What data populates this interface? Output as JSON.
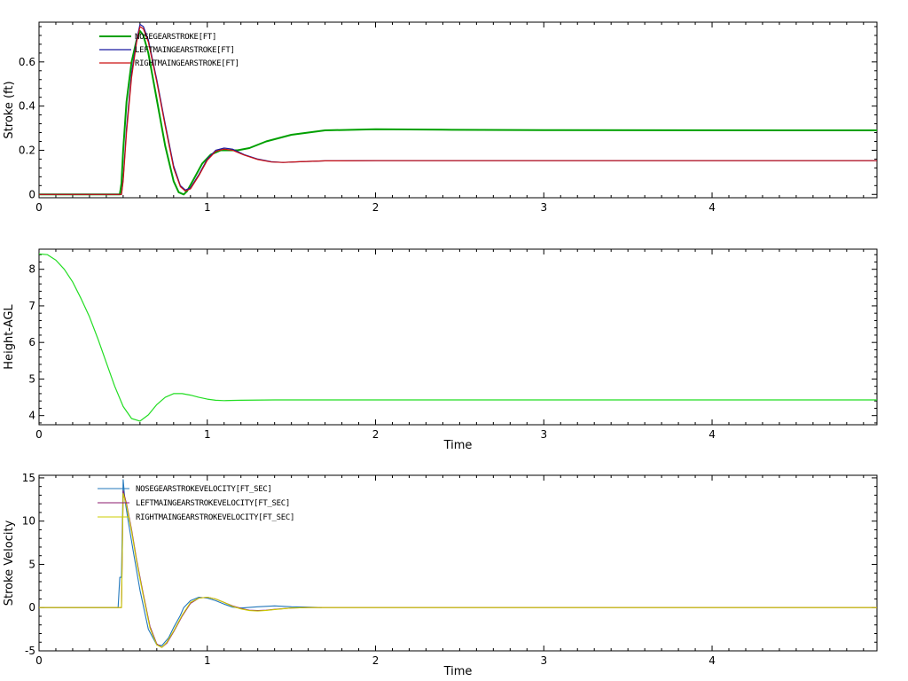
{
  "chart_data": [
    {
      "type": "line",
      "ylabel": "Stroke (ft)",
      "xlabel": "",
      "xlim": [
        0,
        4.98
      ],
      "ylim": [
        -0.015,
        0.78
      ],
      "xticks": [
        0,
        1,
        2,
        3,
        4
      ],
      "yticks": [
        0,
        0.2,
        0.4,
        0.6
      ],
      "ytick_labels": [
        "0",
        "0.2",
        "0.4",
        "0.6"
      ],
      "legend_position": "top-left",
      "series": [
        {
          "name": "NOSEGEARSTROKE[FT]",
          "color": "#00a000",
          "width": 2,
          "x": [
            0,
            0.48,
            0.49,
            0.5,
            0.52,
            0.55,
            0.58,
            0.6,
            0.62,
            0.65,
            0.7,
            0.75,
            0.8,
            0.83,
            0.86,
            0.88,
            0.92,
            0.97,
            1.02,
            1.08,
            1.12,
            1.18,
            1.25,
            1.35,
            1.5,
            1.7,
            2.0,
            2.4,
            3.0,
            4.98
          ],
          "y": [
            0,
            0,
            0.05,
            0.2,
            0.42,
            0.6,
            0.7,
            0.74,
            0.72,
            0.64,
            0.43,
            0.22,
            0.06,
            0.01,
            0.0,
            0.015,
            0.07,
            0.14,
            0.18,
            0.2,
            0.2,
            0.2,
            0.21,
            0.24,
            0.27,
            0.29,
            0.295,
            0.293,
            0.291,
            0.29
          ]
        },
        {
          "name": "LEFTMAINGEARSTROKE[FT]",
          "color": "#1a1aa0",
          "width": 1.2,
          "x": [
            0,
            0.49,
            0.5,
            0.52,
            0.55,
            0.58,
            0.6,
            0.62,
            0.65,
            0.7,
            0.75,
            0.8,
            0.84,
            0.87,
            0.9,
            0.95,
            1.0,
            1.05,
            1.1,
            1.15,
            1.22,
            1.3,
            1.38,
            1.45,
            1.55,
            1.7,
            2.0,
            3.0,
            4.98
          ],
          "y": [
            0,
            0,
            0.07,
            0.3,
            0.55,
            0.7,
            0.77,
            0.76,
            0.7,
            0.52,
            0.32,
            0.13,
            0.04,
            0.02,
            0.03,
            0.09,
            0.16,
            0.2,
            0.21,
            0.205,
            0.18,
            0.16,
            0.148,
            0.145,
            0.148,
            0.152,
            0.153,
            0.153,
            0.153
          ]
        },
        {
          "name": "RIGHTMAINGEARSTROKE[FT]",
          "color": "#cc1111",
          "width": 1.2,
          "x": [
            0,
            0.49,
            0.5,
            0.52,
            0.55,
            0.58,
            0.6,
            0.62,
            0.65,
            0.7,
            0.75,
            0.8,
            0.84,
            0.87,
            0.9,
            0.95,
            1.0,
            1.05,
            1.1,
            1.15,
            1.22,
            1.3,
            1.38,
            1.45,
            1.55,
            1.7,
            2.0,
            3.0,
            4.98
          ],
          "y": [
            0,
            0,
            0.06,
            0.28,
            0.53,
            0.69,
            0.76,
            0.75,
            0.69,
            0.51,
            0.31,
            0.12,
            0.035,
            0.015,
            0.025,
            0.085,
            0.155,
            0.195,
            0.205,
            0.2,
            0.178,
            0.158,
            0.147,
            0.145,
            0.148,
            0.152,
            0.153,
            0.153,
            0.153
          ]
        }
      ]
    },
    {
      "type": "line",
      "ylabel": "Height-AGL",
      "xlabel": "Time",
      "xlim": [
        0,
        4.98
      ],
      "ylim": [
        3.75,
        8.55
      ],
      "xticks": [
        0,
        1,
        2,
        3,
        4
      ],
      "yticks": [
        4,
        5,
        6,
        7,
        8
      ],
      "ytick_labels": [
        "4",
        "5",
        "6",
        "7",
        "8"
      ],
      "series": [
        {
          "name": "",
          "color": "#22dd22",
          "width": 1.2,
          "x": [
            0,
            0.05,
            0.1,
            0.15,
            0.2,
            0.25,
            0.3,
            0.35,
            0.4,
            0.45,
            0.5,
            0.55,
            0.6,
            0.65,
            0.7,
            0.75,
            0.8,
            0.85,
            0.9,
            0.95,
            1.0,
            1.05,
            1.1,
            1.2,
            1.4,
            2.0,
            3.0,
            4.98
          ],
          "y": [
            8.42,
            8.4,
            8.25,
            8.0,
            7.65,
            7.2,
            6.7,
            6.1,
            5.45,
            4.8,
            4.25,
            3.92,
            3.85,
            4.02,
            4.3,
            4.5,
            4.6,
            4.6,
            4.56,
            4.5,
            4.45,
            4.42,
            4.41,
            4.42,
            4.43,
            4.43,
            4.43,
            4.43
          ]
        }
      ]
    },
    {
      "type": "line",
      "ylabel": "Stroke Velocity",
      "xlabel": "Time",
      "xlim": [
        0,
        4.98
      ],
      "ylim": [
        -5,
        15.3
      ],
      "xticks": [
        0,
        1,
        2,
        3,
        4
      ],
      "yticks": [
        -5,
        0,
        5,
        10,
        15
      ],
      "ytick_labels": [
        "-5",
        "0",
        "5",
        "10",
        "15"
      ],
      "legend_position": "top-left",
      "series": [
        {
          "name": "NOSEGEARSTROKEVELOCITY[FT_SEC]",
          "color": "#2277bb",
          "width": 1.1,
          "x": [
            0,
            0.47,
            0.48,
            0.49,
            0.5,
            0.51,
            0.53,
            0.56,
            0.6,
            0.65,
            0.7,
            0.73,
            0.77,
            0.8,
            0.84,
            0.86,
            0.9,
            0.95,
            1.0,
            1.05,
            1.1,
            1.15,
            1.2,
            1.3,
            1.4,
            1.5,
            1.6,
            1.68
          ],
          "y": [
            0,
            0,
            3.5,
            3.5,
            14.8,
            12.5,
            10.0,
            6.5,
            2.0,
            -2.5,
            -4.3,
            -4.4,
            -3.5,
            -2.3,
            -0.9,
            0,
            0.8,
            1.2,
            1.1,
            0.8,
            0.4,
            0.05,
            -0.05,
            0.1,
            0.2,
            0.1,
            0.05,
            0
          ]
        },
        {
          "name": "LEFTMAINGEARSTROKEVELOCITY[FT_SEC]",
          "color": "#8b1a6e",
          "width": 1.1,
          "x": [
            0,
            0.49,
            0.5,
            0.52,
            0.55,
            0.58,
            0.62,
            0.66,
            0.7,
            0.73,
            0.76,
            0.8,
            0.85,
            0.9,
            0.95,
            1.0,
            1.05,
            1.1,
            1.15,
            1.2,
            1.25,
            1.3,
            1.35,
            1.4,
            1.5,
            1.6,
            4.98
          ],
          "y": [
            0,
            0,
            13.5,
            12.0,
            9.0,
            5.5,
            1.5,
            -2.2,
            -4.2,
            -4.6,
            -4.1,
            -2.8,
            -1.0,
            0.5,
            1.1,
            1.2,
            1.0,
            0.6,
            0.2,
            -0.1,
            -0.3,
            -0.35,
            -0.3,
            -0.2,
            -0.05,
            0,
            0
          ]
        },
        {
          "name": "RIGHTMAINGEARSTROKEVELOCITY[FT_SEC]",
          "color": "#cccc00",
          "width": 1.1,
          "x": [
            0,
            0.49,
            0.5,
            0.52,
            0.55,
            0.58,
            0.62,
            0.66,
            0.7,
            0.73,
            0.76,
            0.8,
            0.85,
            0.9,
            0.95,
            1.0,
            1.05,
            1.1,
            1.15,
            1.2,
            1.25,
            1.3,
            1.35,
            1.4,
            1.5,
            1.6,
            4.98
          ],
          "y": [
            0,
            0,
            13.2,
            11.8,
            8.8,
            5.3,
            1.3,
            -2.4,
            -4.3,
            -4.6,
            -4.0,
            -2.7,
            -0.9,
            0.6,
            1.1,
            1.2,
            1.0,
            0.6,
            0.15,
            -0.15,
            -0.35,
            -0.4,
            -0.32,
            -0.22,
            -0.05,
            0,
            0
          ]
        }
      ]
    }
  ]
}
